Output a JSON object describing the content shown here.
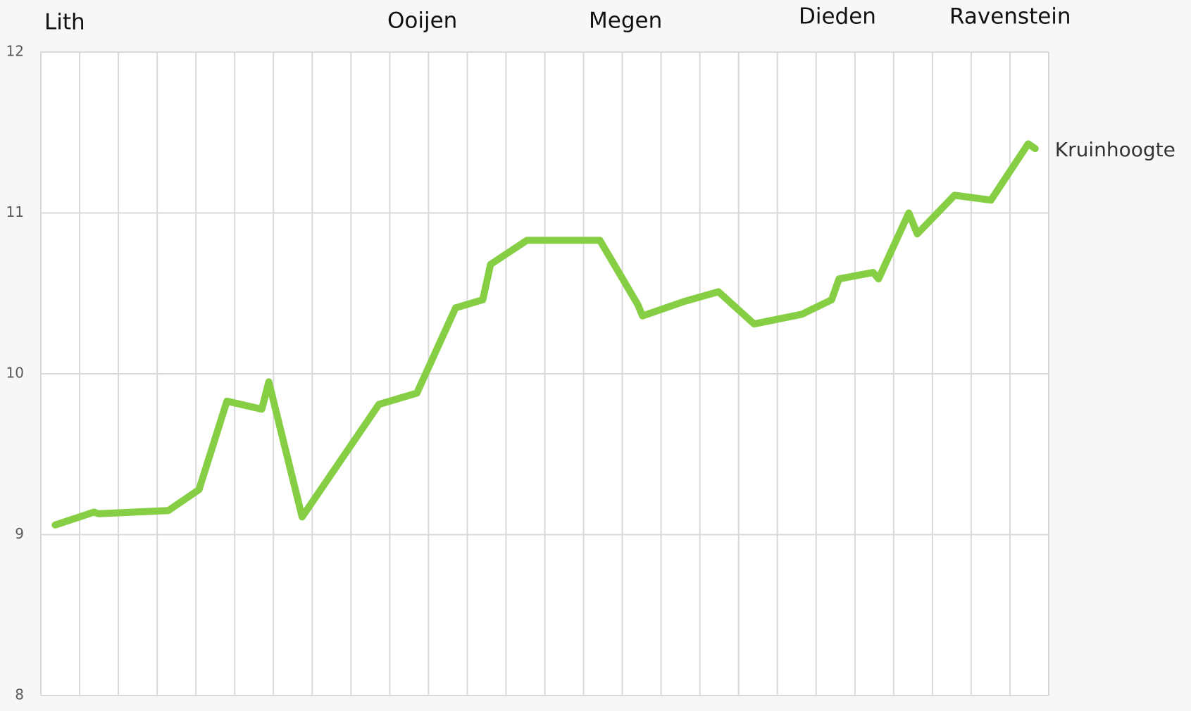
{
  "chart_data": {
    "type": "line",
    "annotations": [
      "Lith",
      "Ooijen",
      "Megen",
      "Dieden",
      "Ravenstein"
    ],
    "series": [
      {
        "name": "Kruinhoogte",
        "color": "#86cf45",
        "x": [
          0.37,
          1.37,
          1.49,
          3.29,
          4.08,
          4.8,
          5.7,
          5.88,
          6.74,
          8.72,
          9.7,
          10.7,
          11.4,
          11.6,
          12.54,
          14.42,
          15.4,
          15.52,
          16.6,
          17.48,
          18.4,
          19.63,
          20.4,
          20.59,
          21.47,
          21.61,
          22.39,
          22.61,
          23.57,
          24.51,
          25.47,
          25.65
        ],
        "values": [
          9.06,
          9.14,
          9.13,
          9.15,
          9.28,
          9.83,
          9.78,
          9.95,
          9.11,
          9.81,
          9.88,
          10.41,
          10.46,
          10.68,
          10.83,
          10.83,
          10.43,
          10.36,
          10.45,
          10.51,
          10.31,
          10.37,
          10.46,
          10.59,
          10.63,
          10.59,
          11.0,
          10.87,
          11.11,
          11.08,
          11.43,
          11.4
        ]
      }
    ],
    "xlim": [
      0,
      26
    ],
    "xticks": [
      0,
      1,
      2,
      3,
      4,
      5,
      6,
      7,
      8,
      9,
      10,
      11,
      12,
      13,
      14,
      15,
      16,
      17,
      18,
      19,
      20,
      21,
      22,
      23,
      24,
      25,
      26
    ],
    "ylim": [
      8,
      12
    ],
    "yticks": [
      8,
      9,
      10,
      11,
      12
    ],
    "grid": true
  }
}
